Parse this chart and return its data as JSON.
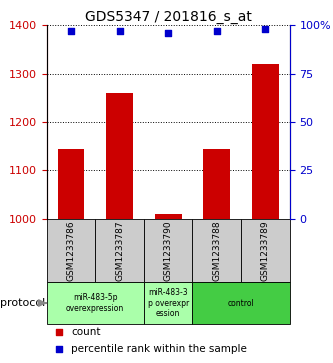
{
  "title": "GDS5347 / 201816_s_at",
  "samples": [
    "GSM1233786",
    "GSM1233787",
    "GSM1233790",
    "GSM1233788",
    "GSM1233789"
  ],
  "count_values": [
    1145,
    1260,
    1010,
    1145,
    1320
  ],
  "percentile_values": [
    97,
    97,
    96,
    97,
    98
  ],
  "ylim_left": [
    1000,
    1400
  ],
  "ylim_right": [
    0,
    100
  ],
  "yticks_left": [
    1000,
    1100,
    1200,
    1300,
    1400
  ],
  "yticks_right": [
    0,
    25,
    50,
    75,
    100
  ],
  "bar_color": "#cc0000",
  "scatter_color": "#0000cc",
  "title_fontsize": 10,
  "protocol_groups": [
    {
      "label": "miR-483-5p\noverexpression",
      "start": 0,
      "end": 2,
      "color": "#aaffaa"
    },
    {
      "label": "miR-483-3\np overexpr\nession",
      "start": 2,
      "end": 3,
      "color": "#aaffaa"
    },
    {
      "label": "control",
      "start": 3,
      "end": 5,
      "color": "#44cc44"
    }
  ],
  "legend_count_color": "#cc0000",
  "legend_percentile_color": "#0000cc",
  "axes_label_color_left": "#cc0000",
  "axes_label_color_right": "#0000cc",
  "sample_box_color": "#cccccc",
  "sample_box_edge": "#888888"
}
